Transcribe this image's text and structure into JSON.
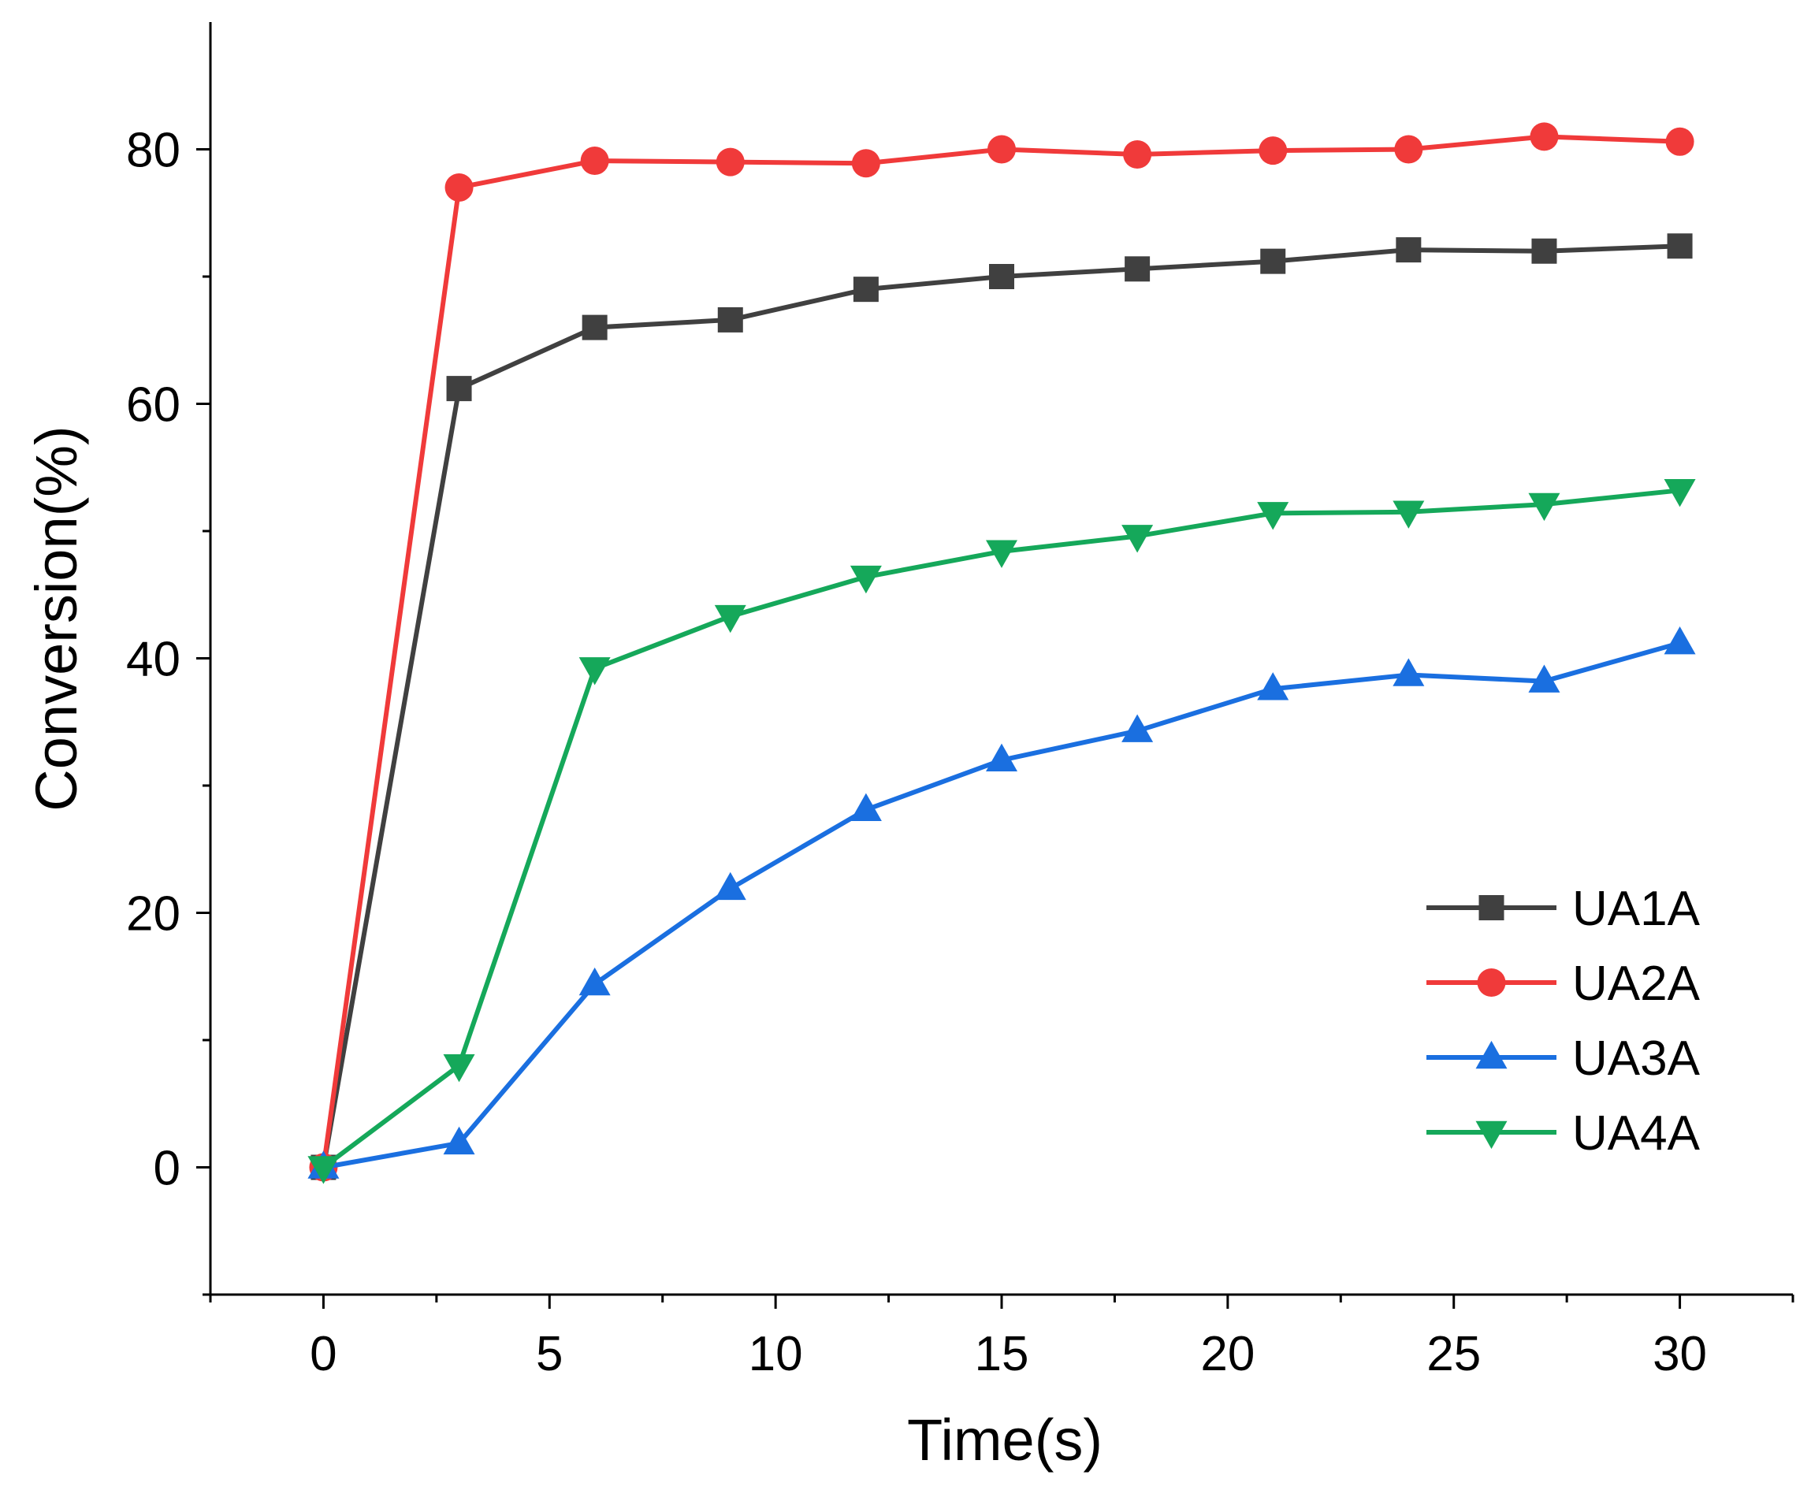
{
  "chart_data": {
    "type": "line",
    "title": "",
    "xlabel": "Time(s)",
    "ylabel": "Conversion(%)",
    "xlim": [
      -2.5,
      32.5
    ],
    "ylim": [
      -10,
      90
    ],
    "xticks": [
      0,
      5,
      10,
      15,
      20,
      25,
      30
    ],
    "xtick_labels": [
      "0",
      "5",
      "10",
      "15",
      "20",
      "25",
      "30"
    ],
    "yticks": [
      0,
      20,
      40,
      60,
      80
    ],
    "ytick_labels": [
      "0",
      "20",
      "40",
      "60",
      "80"
    ],
    "x_minor_ticks": [
      -2.5,
      2.5,
      7.5,
      12.5,
      17.5,
      22.5,
      27.5,
      32.5
    ],
    "y_minor_ticks": [
      -10,
      10,
      30,
      50,
      70
    ],
    "grid": false,
    "legend_position": "bottom-right",
    "x": [
      0,
      3,
      6,
      9,
      12,
      15,
      18,
      21,
      24,
      27,
      30
    ],
    "series": [
      {
        "name": "UA1A",
        "color": "#404040",
        "marker": "square",
        "values": [
          0,
          61.2,
          66.0,
          66.6,
          69.0,
          70.0,
          70.6,
          71.2,
          72.1,
          72.0,
          72.4
        ]
      },
      {
        "name": "UA2A",
        "color": "#f03a3a",
        "marker": "circle",
        "values": [
          0,
          77.0,
          79.1,
          79.0,
          78.9,
          80.0,
          79.6,
          79.9,
          80.0,
          81.0,
          80.6
        ]
      },
      {
        "name": "UA3A",
        "color": "#1a6fe0",
        "marker": "triangle-up",
        "values": [
          0,
          1.9,
          14.4,
          21.9,
          28.1,
          32.0,
          34.3,
          37.6,
          38.7,
          38.2,
          41.2
        ]
      },
      {
        "name": "UA4A",
        "color": "#15a85a",
        "marker": "triangle-down",
        "values": [
          0,
          8.0,
          39.2,
          43.3,
          46.4,
          48.4,
          49.6,
          51.4,
          51.5,
          52.1,
          53.2
        ]
      }
    ]
  }
}
